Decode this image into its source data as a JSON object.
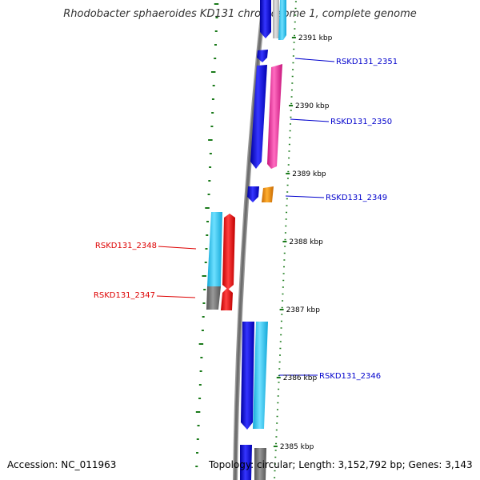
{
  "header": {
    "title": "Rhodobacter sphaeroides KD131 chromosome 1, complete genome"
  },
  "footer": {
    "accession": "Accession: NC_011963",
    "summary": "Topology: circular; Length: 3,152,792 bp; Genes: 3,143"
  },
  "scale_labels": [
    "2391 kbp",
    "2390 kbp",
    "2389 kbp",
    "2388 kbp",
    "2387 kbp",
    "2386 kbp",
    "2385 kbp"
  ],
  "gene_labels": [
    {
      "text": "RSKD131_2351",
      "color": "#0000cc"
    },
    {
      "text": "RSKD131_2350",
      "color": "#0000cc"
    },
    {
      "text": "RSKD131_2349",
      "color": "#0000cc"
    },
    {
      "text": "RSKD131_2348",
      "color": "#dd0000"
    },
    {
      "text": "RSKD131_2347",
      "color": "#dd0000"
    },
    {
      "text": "RSKD131_2346",
      "color": "#0000cc"
    }
  ],
  "colors": {
    "backbone": "#777777",
    "tick": "#1a7a1a",
    "blue": "#1010e6",
    "cyan": "#2ec6f0",
    "pink": "#ee2f9c",
    "orange": "#f08a00",
    "red": "#ee0000",
    "gray": "#707070"
  }
}
